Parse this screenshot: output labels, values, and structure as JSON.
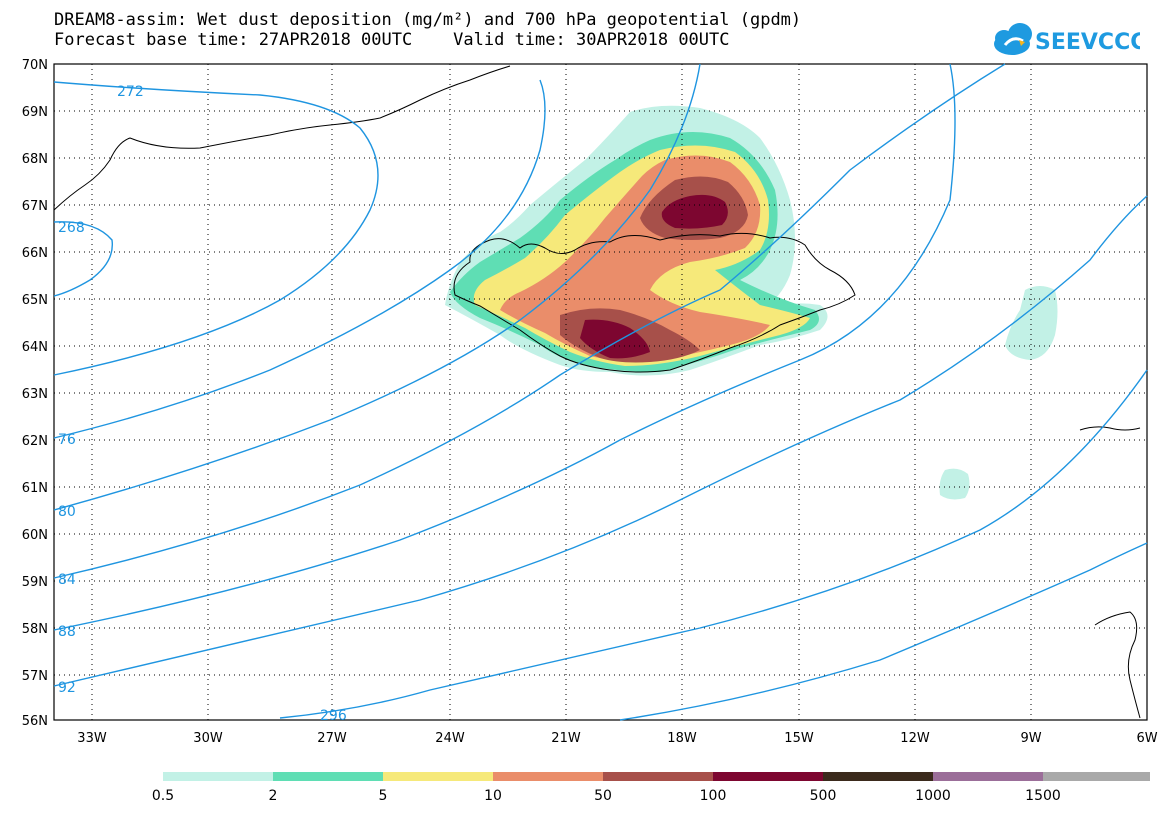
{
  "title_line1": "DREAM8-assim: Wet dust deposition (mg/m²) and 700 hPa geopotential (gpdm)",
  "title_line2": "Forecast base time: 27APR2018 00UTC    Valid time: 30APR2018 00UTC",
  "logo_text": "SEEVCCC",
  "map": {
    "lat_labels": [
      "70N",
      "69N",
      "68N",
      "67N",
      "66N",
      "65N",
      "64N",
      "63N",
      "62N",
      "61N",
      "60N",
      "59N",
      "58N",
      "57N",
      "56N"
    ],
    "lon_labels": [
      "33W",
      "30W",
      "27W",
      "24W",
      "21W",
      "18W",
      "15W",
      "12W",
      "9W",
      "6W"
    ],
    "contour_labels": [
      "272",
      "268",
      "76",
      "80",
      "84",
      "88",
      "92",
      "296"
    ],
    "colors": {
      "contour": "#1f95e0",
      "coast": "#000000"
    }
  },
  "legend": {
    "labels": [
      "0.5",
      "2",
      "5",
      "10",
      "50",
      "100",
      "500",
      "1000",
      "1500"
    ],
    "colors": [
      "#c2f1e6",
      "#5fdeb4",
      "#f6e97a",
      "#ea8d6a",
      "#a7504a",
      "#7d0630",
      "#3b2a1c",
      "#9b6e99",
      "#a9a9a9"
    ]
  }
}
